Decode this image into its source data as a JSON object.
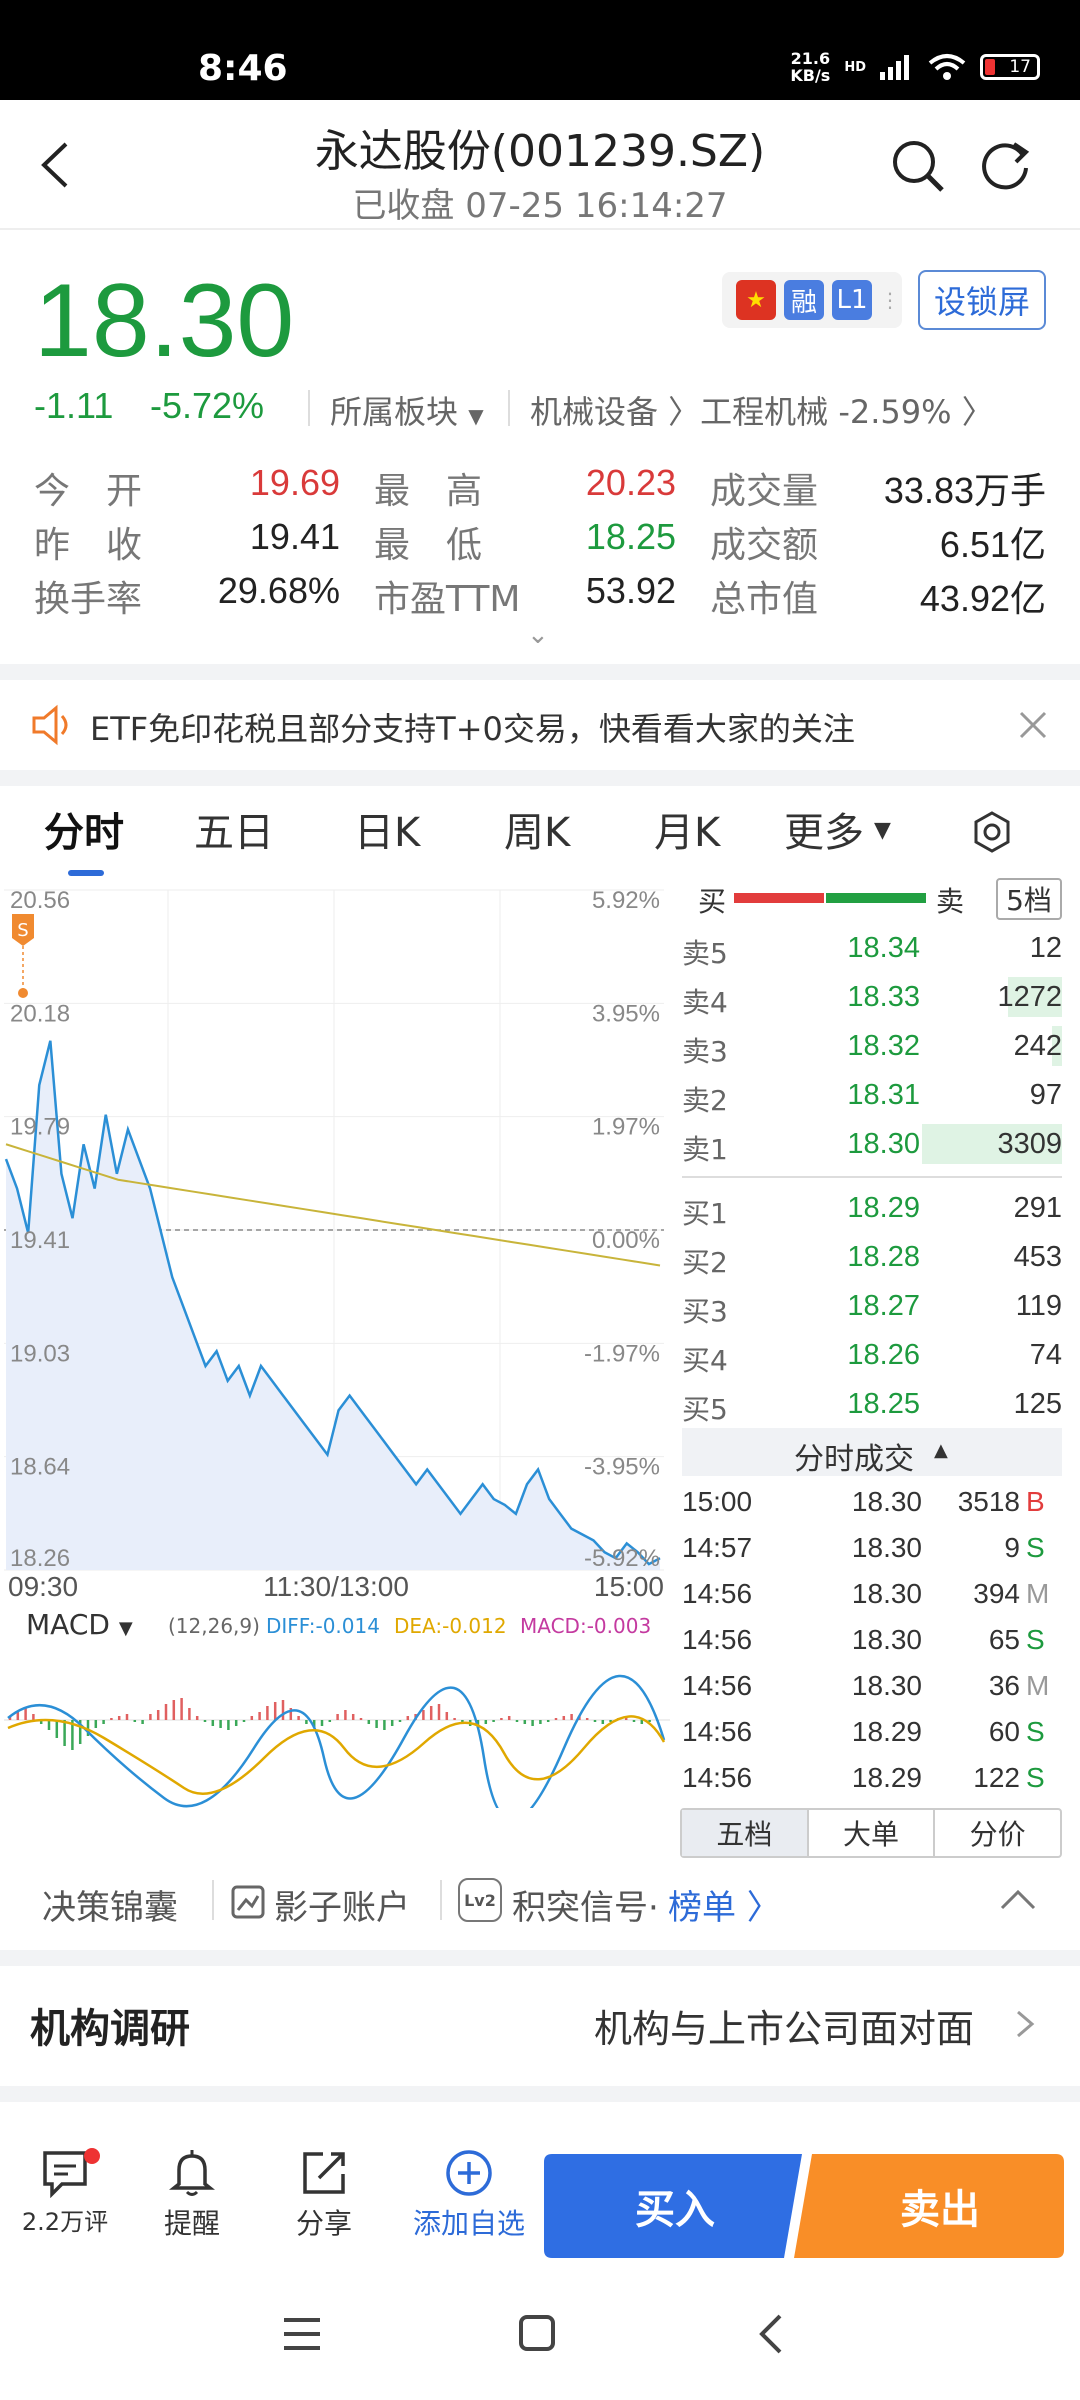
{
  "status_bar": {
    "time": "8:46",
    "speed_value": "21.6",
    "speed_unit": "KB/s",
    "network": "HD",
    "battery": "17"
  },
  "header": {
    "title": "永达股份(001239.SZ)",
    "subtitle": "已收盘 07-25 16:14:27"
  },
  "quote": {
    "price": "18.30",
    "change": "-1.11",
    "change_pct": "-5.72%",
    "badges": {
      "margin": "融",
      "level": "L1"
    },
    "lock_screen": "设锁屏",
    "sector_label": "所属板块",
    "sector_path": "机械设备 〉工程机械 -2.59% 〉"
  },
  "stats": [
    {
      "label": "今　开",
      "value": "19.69",
      "color": "red"
    },
    {
      "label": "最　高",
      "value": "20.23",
      "color": "red"
    },
    {
      "label": "成交量",
      "value": "33.83万手",
      "color": "plain"
    },
    {
      "label": "昨　收",
      "value": "19.41",
      "color": "plain"
    },
    {
      "label": "最　低",
      "value": "18.25",
      "color": "green"
    },
    {
      "label": "成交额",
      "value": "6.51亿",
      "color": "plain"
    },
    {
      "label": "换手率",
      "value": "29.68%",
      "color": "plain"
    },
    {
      "label": "市盈TTM",
      "value": "53.92",
      "color": "plain"
    },
    {
      "label": "总市值",
      "value": "43.92亿",
      "color": "plain"
    }
  ],
  "notice": {
    "text": "ETF免印花税且部分支持T+0交易，快看看大家的关注"
  },
  "chart_tabs": [
    "分时",
    "五日",
    "日K",
    "周K",
    "月K",
    "更多"
  ],
  "chart_data": {
    "type": "line",
    "title": "",
    "x_labels": [
      "09:30",
      "11:30/13:00",
      "15:00"
    ],
    "y_left_ticks": [
      "20.56",
      "20.18",
      "19.79",
      "19.41",
      "19.03",
      "18.64",
      "18.26"
    ],
    "y_right_ticks": [
      "5.92%",
      "3.95%",
      "1.97%",
      "0.00%",
      "-1.97%",
      "-3.95%",
      "-5.92%"
    ],
    "ylim": [
      18.26,
      20.56
    ],
    "prev_close": 19.41,
    "series": [
      {
        "name": "",
        "values": [
          19.65,
          19.55,
          19.4,
          19.9,
          20.05,
          19.6,
          19.45,
          19.7,
          19.55,
          19.8,
          19.6,
          19.75,
          19.65,
          19.55,
          19.4,
          19.25,
          19.15,
          19.05,
          18.95,
          19.0,
          18.9,
          18.95,
          18.85,
          18.95,
          18.9,
          18.85,
          18.8,
          18.75,
          18.7,
          18.65,
          18.8,
          18.85,
          18.8,
          18.75,
          18.7,
          18.65,
          18.6,
          18.55,
          18.6,
          18.55,
          18.5,
          18.45,
          18.5,
          18.55,
          18.5,
          18.48,
          18.45,
          18.55,
          18.6,
          18.5,
          18.45,
          18.4,
          18.38,
          18.36,
          18.32,
          18.3,
          18.35,
          18.32,
          18.28,
          18.3
        ]
      },
      {
        "name": "",
        "values": [
          19.7,
          19.68,
          19.66,
          19.64,
          19.62,
          19.6,
          19.58,
          19.57,
          19.56,
          19.55,
          19.54,
          19.53,
          19.52,
          19.51,
          19.5,
          19.49,
          19.48,
          19.47,
          19.46,
          19.45,
          19.44,
          19.43,
          19.42,
          19.41,
          19.4,
          19.39,
          19.38,
          19.37,
          19.36,
          19.35,
          19.34,
          19.33,
          19.32,
          19.31,
          19.3,
          19.29
        ]
      }
    ]
  },
  "order_book": {
    "buy_label": "买",
    "sell_label": "卖",
    "depth_btn": "5档",
    "asks": [
      {
        "label": "卖5",
        "price": "18.34",
        "vol": "12"
      },
      {
        "label": "卖4",
        "price": "18.33",
        "vol": "1272"
      },
      {
        "label": "卖3",
        "price": "18.32",
        "vol": "242"
      },
      {
        "label": "卖2",
        "price": "18.31",
        "vol": "97"
      },
      {
        "label": "卖1",
        "price": "18.30",
        "vol": "3309"
      }
    ],
    "bids": [
      {
        "label": "买1",
        "price": "18.29",
        "vol": "291"
      },
      {
        "label": "买2",
        "price": "18.28",
        "vol": "453"
      },
      {
        "label": "买3",
        "price": "18.27",
        "vol": "119"
      },
      {
        "label": "买4",
        "price": "18.26",
        "vol": "74"
      },
      {
        "label": "买5",
        "price": "18.25",
        "vol": "125"
      }
    ]
  },
  "trades": {
    "title": "分时成交",
    "rows": [
      {
        "time": "15:00",
        "price": "18.30",
        "vol": "3518",
        "side": "B"
      },
      {
        "time": "14:57",
        "price": "18.30",
        "vol": "9",
        "side": "S"
      },
      {
        "time": "14:56",
        "price": "18.30",
        "vol": "394",
        "side": "M"
      },
      {
        "time": "14:56",
        "price": "18.30",
        "vol": "65",
        "side": "S"
      },
      {
        "time": "14:56",
        "price": "18.30",
        "vol": "36",
        "side": "M"
      },
      {
        "time": "14:56",
        "price": "18.29",
        "vol": "60",
        "side": "S"
      },
      {
        "time": "14:56",
        "price": "18.29",
        "vol": "122",
        "side": "S"
      }
    ],
    "tabs": [
      "五档",
      "大单",
      "分价"
    ]
  },
  "macd": {
    "label": "MACD",
    "params": "(12,26,9)",
    "diff": "DIFF:-0.014",
    "dea": "DEA:-0.012",
    "macd": "MACD:-0.003"
  },
  "tools": {
    "strategy": "决策锦囊",
    "shadow": "影子账户",
    "signal": "积突信号·",
    "rank": "榜单 〉",
    "lv2": "Lv2"
  },
  "research": {
    "title": "机构调研",
    "link": "机构与上市公司面对面"
  },
  "bottom": {
    "comments": "2.2万评",
    "remind": "提醒",
    "share": "分享",
    "watch": "添加自选",
    "buy": "买入",
    "sell": "卖出"
  }
}
